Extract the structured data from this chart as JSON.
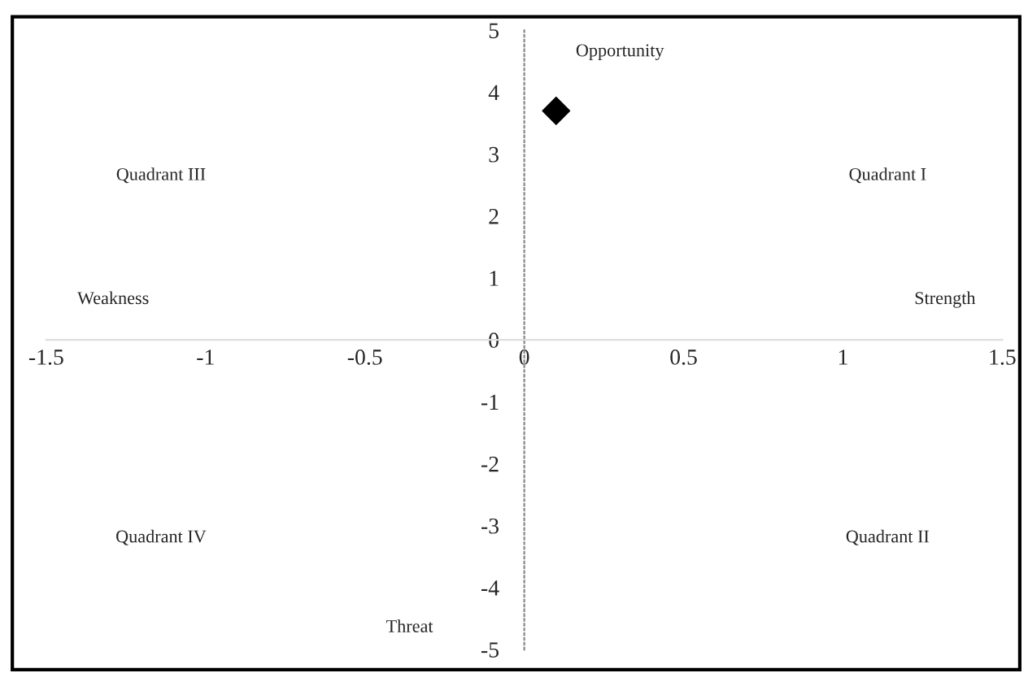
{
  "chart_data": {
    "type": "scatter",
    "x": [
      0.1
    ],
    "values": [
      3.7
    ],
    "color": "#000000",
    "marker": "diamond",
    "xlim": [
      -1.5,
      1.5
    ],
    "xticks": [
      -1.5,
      -1,
      -0.5,
      0,
      0.5,
      1,
      1.5
    ],
    "ylim": [
      -5,
      5
    ],
    "yticks": [
      -5,
      -4,
      -3,
      -2,
      -1,
      0,
      1,
      2,
      3,
      4,
      5
    ],
    "annotations": [
      "Opportunity",
      "Quadrant III",
      "Quadrant I",
      "Weakness",
      "Strength",
      "Quadrant IV",
      "Quadrant II",
      "Threat"
    ]
  }
}
